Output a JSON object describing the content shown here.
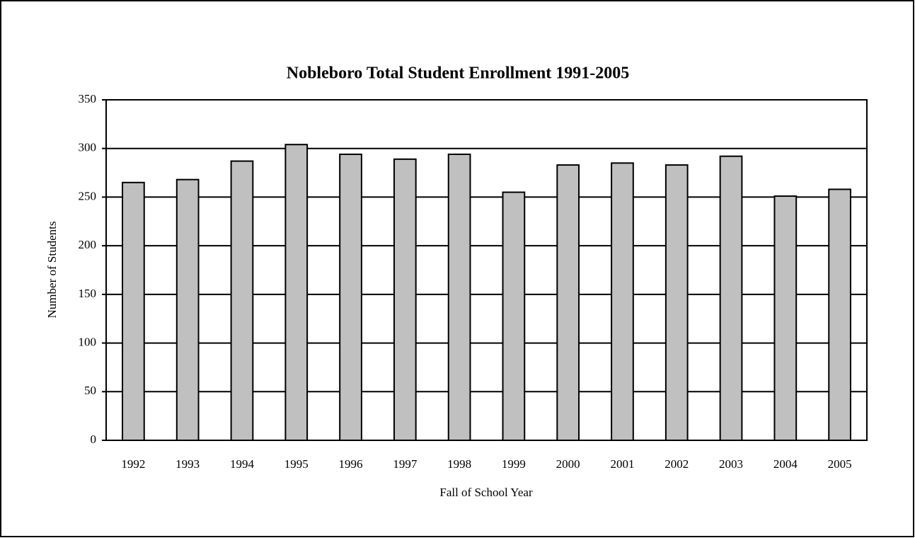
{
  "chart_data": {
    "type": "bar",
    "title": "Nobleboro Total Student Enrollment 1991-2005",
    "x_label": "Fall of School Year",
    "y_label": "Number of Students",
    "categories": [
      "1992",
      "1993",
      "1994",
      "1995",
      "1996",
      "1997",
      "1998",
      "1999",
      "2000",
      "2001",
      "2002",
      "2003",
      "2004",
      "2005"
    ],
    "values": [
      265,
      268,
      287,
      304,
      294,
      289,
      294,
      255,
      283,
      285,
      283,
      292,
      251,
      258
    ],
    "color": "#c0c0c0",
    "ylim": [
      0,
      350
    ],
    "yticks": [
      0,
      50,
      100,
      150,
      200,
      250,
      300,
      350
    ],
    "grid": true
  }
}
